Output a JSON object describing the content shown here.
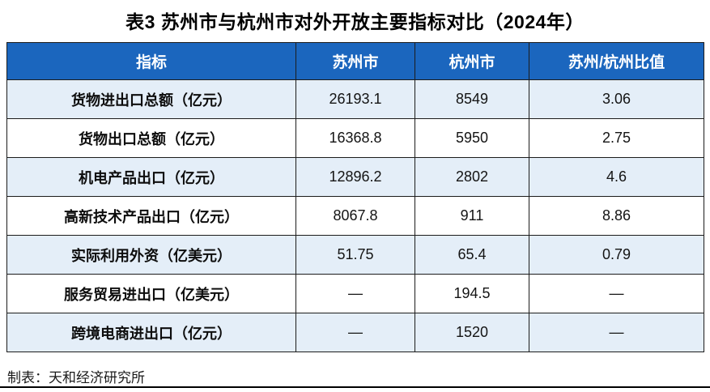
{
  "page": {
    "title": "表3  苏州市与杭州市对外开放主要指标对比（2024年）",
    "footer": "制表：天和经济研究所"
  },
  "colors": {
    "header_bg": "#1b66be",
    "header_text": "#ffffff",
    "row_alt_bg": "#e4eef8",
    "row_bg": "#ffffff",
    "border": "#1c1c1c",
    "bottom_rule": "#000000"
  },
  "table": {
    "columns": [
      "指标",
      "苏州市",
      "杭州市",
      "苏州/杭州比值"
    ],
    "rows": [
      {
        "indicator": "货物进出口总额（亿元）",
        "suzhou": "26193.1",
        "hangzhou": "8549",
        "ratio": "3.06"
      },
      {
        "indicator": "货物出口总额（亿元）",
        "suzhou": "16368.8",
        "hangzhou": "5950",
        "ratio": "2.75"
      },
      {
        "indicator": "机电产品出口（亿元）",
        "suzhou": "12896.2",
        "hangzhou": "2802",
        "ratio": "4.6"
      },
      {
        "indicator": "高新技术产品出口（亿元）",
        "suzhou": "8067.8",
        "hangzhou": "911",
        "ratio": "8.86"
      },
      {
        "indicator": "实际利用外资（亿美元）",
        "suzhou": "51.75",
        "hangzhou": "65.4",
        "ratio": "0.79"
      },
      {
        "indicator": "服务贸易进出口（亿美元）",
        "suzhou": "—",
        "hangzhou": "194.5",
        "ratio": "—"
      },
      {
        "indicator": "跨境电商进出口（亿元）",
        "suzhou": "—",
        "hangzhou": "1520",
        "ratio": "—"
      }
    ]
  },
  "chart_data": {
    "type": "table",
    "title": "表3 苏州市与杭州市对外开放主要指标对比（2024年）",
    "columns": [
      "指标",
      "苏州市",
      "杭州市",
      "苏州/杭州比值"
    ],
    "rows": [
      [
        "货物进出口总额（亿元）",
        26193.1,
        8549,
        3.06
      ],
      [
        "货物出口总额（亿元）",
        16368.8,
        5950,
        2.75
      ],
      [
        "机电产品出口（亿元）",
        12896.2,
        2802,
        4.6
      ],
      [
        "高新技术产品出口（亿元）",
        8067.8,
        911,
        8.86
      ],
      [
        "实际利用外资（亿美元）",
        51.75,
        65.4,
        0.79
      ],
      [
        "服务贸易进出口（亿美元）",
        null,
        194.5,
        null
      ],
      [
        "跨境电商进出口（亿元）",
        null,
        1520,
        null
      ]
    ],
    "missing_value_display": "—",
    "source_note": "制表：天和经济研究所"
  }
}
